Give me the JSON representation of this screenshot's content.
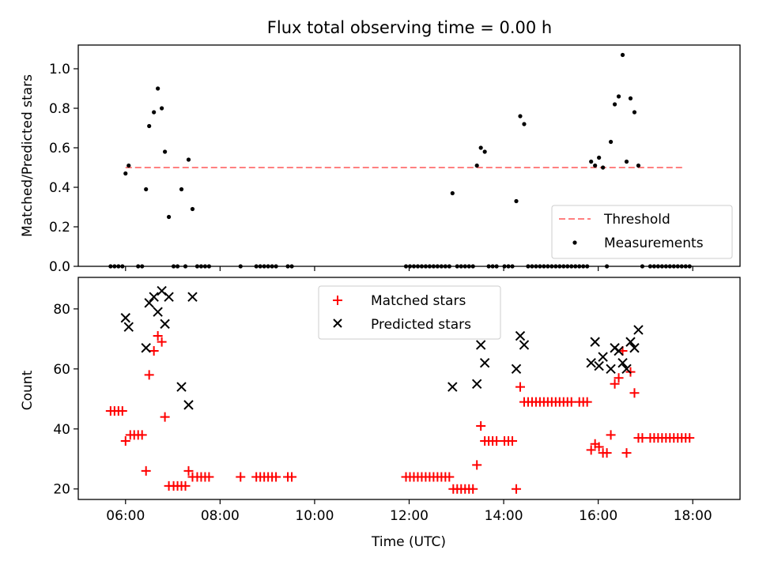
{
  "title": "Flux total observing time = 0.00 h",
  "chart_data": [
    {
      "type": "scatter",
      "ylabel": "Matched/Predicted stars",
      "xlim": [
        "05:00",
        "19:00"
      ],
      "ylim": [
        0,
        1.12
      ],
      "yticks": [
        "0.0",
        "0.2",
        "0.4",
        "0.6",
        "0.8",
        "1.0"
      ],
      "legend": {
        "placement": "lower-right",
        "entries": [
          "Threshold",
          "Measurements"
        ]
      },
      "threshold": {
        "name": "Threshold",
        "value": 0.5,
        "x_range": [
          "06:00",
          "17:50"
        ],
        "color": "#ff8080",
        "style": "dashed"
      },
      "series": [
        {
          "name": "Measurements",
          "color": "#000000",
          "marker": "dot",
          "points": [
            [
              "06:00",
              0.47
            ],
            [
              "06:04",
              0.51
            ],
            [
              "06:26",
              0.39
            ],
            [
              "06:30",
              0.71
            ],
            [
              "06:36",
              0.78
            ],
            [
              "06:41",
              0.9
            ],
            [
              "06:46",
              0.8
            ],
            [
              "06:50",
              0.58
            ],
            [
              "06:55",
              0.25
            ],
            [
              "07:11",
              0.39
            ],
            [
              "07:20",
              0.54
            ],
            [
              "07:25",
              0.29
            ],
            [
              "12:55",
              0.37
            ],
            [
              "13:26",
              0.51
            ],
            [
              "13:31",
              0.6
            ],
            [
              "13:36",
              0.58
            ],
            [
              "14:16",
              0.33
            ],
            [
              "14:21",
              0.76
            ],
            [
              "14:26",
              0.72
            ],
            [
              "15:51",
              0.53
            ],
            [
              "15:56",
              0.51
            ],
            [
              "16:01",
              0.55
            ],
            [
              "16:06",
              0.5
            ],
            [
              "16:16",
              0.63
            ],
            [
              "16:21",
              0.82
            ],
            [
              "16:26",
              0.86
            ],
            [
              "16:31",
              1.07
            ],
            [
              "16:36",
              0.53
            ],
            [
              "16:41",
              0.85
            ],
            [
              "16:46",
              0.78
            ],
            [
              "16:51",
              0.51
            ],
            [
              "05:41",
              0
            ],
            [
              "05:46",
              0
            ],
            [
              "05:51",
              0
            ],
            [
              "05:56",
              0
            ],
            [
              "06:16",
              0
            ],
            [
              "06:21",
              0
            ],
            [
              "07:01",
              0
            ],
            [
              "07:06",
              0
            ],
            [
              "07:16",
              0
            ],
            [
              "07:31",
              0
            ],
            [
              "07:36",
              0
            ],
            [
              "07:41",
              0
            ],
            [
              "07:46",
              0
            ],
            [
              "08:26",
              0
            ],
            [
              "08:46",
              0
            ],
            [
              "08:51",
              0
            ],
            [
              "08:56",
              0
            ],
            [
              "09:01",
              0
            ],
            [
              "09:06",
              0
            ],
            [
              "09:11",
              0
            ],
            [
              "09:26",
              0
            ],
            [
              "09:31",
              0
            ],
            [
              "11:56",
              0
            ],
            [
              "12:01",
              0
            ],
            [
              "12:06",
              0
            ],
            [
              "12:11",
              0
            ],
            [
              "12:16",
              0
            ],
            [
              "12:21",
              0
            ],
            [
              "12:26",
              0
            ],
            [
              "12:31",
              0
            ],
            [
              "12:36",
              0
            ],
            [
              "12:41",
              0
            ],
            [
              "12:46",
              0
            ],
            [
              "12:51",
              0
            ],
            [
              "13:01",
              0
            ],
            [
              "13:06",
              0
            ],
            [
              "13:11",
              0
            ],
            [
              "13:16",
              0
            ],
            [
              "13:21",
              0
            ],
            [
              "13:41",
              0
            ],
            [
              "13:46",
              0
            ],
            [
              "13:51",
              0
            ],
            [
              "14:01",
              0
            ],
            [
              "14:06",
              0
            ],
            [
              "14:11",
              0
            ],
            [
              "14:31",
              0
            ],
            [
              "14:36",
              0
            ],
            [
              "14:41",
              0
            ],
            [
              "14:46",
              0
            ],
            [
              "14:51",
              0
            ],
            [
              "14:56",
              0
            ],
            [
              "15:01",
              0
            ],
            [
              "15:06",
              0
            ],
            [
              "15:11",
              0
            ],
            [
              "15:16",
              0
            ],
            [
              "15:21",
              0
            ],
            [
              "15:26",
              0
            ],
            [
              "15:31",
              0
            ],
            [
              "15:36",
              0
            ],
            [
              "15:41",
              0
            ],
            [
              "15:46",
              0
            ],
            [
              "16:11",
              0
            ],
            [
              "16:56",
              0
            ],
            [
              "17:06",
              0
            ],
            [
              "17:11",
              0
            ],
            [
              "17:16",
              0
            ],
            [
              "17:21",
              0
            ],
            [
              "17:26",
              0
            ],
            [
              "17:31",
              0
            ],
            [
              "17:36",
              0
            ],
            [
              "17:41",
              0
            ],
            [
              "17:46",
              0
            ],
            [
              "17:51",
              0
            ],
            [
              "17:56",
              0
            ]
          ]
        }
      ]
    },
    {
      "type": "scatter",
      "xlabel": "Time (UTC)",
      "ylabel": "Count",
      "xlim": [
        "05:00",
        "19:00"
      ],
      "ylim": [
        16.5,
        90.5
      ],
      "xticks": [
        "06:00",
        "08:00",
        "10:00",
        "12:00",
        "14:00",
        "16:00",
        "18:00"
      ],
      "yticks": [
        "20",
        "40",
        "60",
        "80"
      ],
      "legend": {
        "placement": "upper-center",
        "entries": [
          "Matched stars",
          "Predicted stars"
        ]
      },
      "series": [
        {
          "name": "Matched stars",
          "color": "#ff0000",
          "marker": "plus",
          "points": [
            [
              "05:41",
              46
            ],
            [
              "05:46",
              46
            ],
            [
              "05:51",
              46
            ],
            [
              "05:56",
              46
            ],
            [
              "06:00",
              36
            ],
            [
              "06:06",
              38
            ],
            [
              "06:11",
              38
            ],
            [
              "06:16",
              38
            ],
            [
              "06:21",
              38
            ],
            [
              "06:26",
              26
            ],
            [
              "06:30",
              58
            ],
            [
              "06:36",
              66
            ],
            [
              "06:41",
              71
            ],
            [
              "06:46",
              69
            ],
            [
              "06:50",
              44
            ],
            [
              "06:55",
              21
            ],
            [
              "07:01",
              21
            ],
            [
              "07:06",
              21
            ],
            [
              "07:11",
              21
            ],
            [
              "07:16",
              21
            ],
            [
              "07:20",
              26
            ],
            [
              "07:25",
              24
            ],
            [
              "07:31",
              24
            ],
            [
              "07:36",
              24
            ],
            [
              "07:41",
              24
            ],
            [
              "07:46",
              24
            ],
            [
              "08:26",
              24
            ],
            [
              "08:46",
              24
            ],
            [
              "08:51",
              24
            ],
            [
              "08:56",
              24
            ],
            [
              "09:01",
              24
            ],
            [
              "09:06",
              24
            ],
            [
              "09:11",
              24
            ],
            [
              "09:26",
              24
            ],
            [
              "09:31",
              24
            ],
            [
              "11:56",
              24
            ],
            [
              "12:01",
              24
            ],
            [
              "12:06",
              24
            ],
            [
              "12:11",
              24
            ],
            [
              "12:16",
              24
            ],
            [
              "12:21",
              24
            ],
            [
              "12:26",
              24
            ],
            [
              "12:31",
              24
            ],
            [
              "12:36",
              24
            ],
            [
              "12:41",
              24
            ],
            [
              "12:46",
              24
            ],
            [
              "12:51",
              24
            ],
            [
              "12:56",
              20
            ],
            [
              "13:01",
              20
            ],
            [
              "13:06",
              20
            ],
            [
              "13:11",
              20
            ],
            [
              "13:16",
              20
            ],
            [
              "13:21",
              20
            ],
            [
              "13:26",
              28
            ],
            [
              "13:31",
              41
            ],
            [
              "13:36",
              36
            ],
            [
              "13:41",
              36
            ],
            [
              "13:46",
              36
            ],
            [
              "13:51",
              36
            ],
            [
              "14:01",
              36
            ],
            [
              "14:06",
              36
            ],
            [
              "14:11",
              36
            ],
            [
              "14:16",
              20
            ],
            [
              "14:21",
              54
            ],
            [
              "14:26",
              49
            ],
            [
              "14:31",
              49
            ],
            [
              "14:36",
              49
            ],
            [
              "14:41",
              49
            ],
            [
              "14:46",
              49
            ],
            [
              "14:51",
              49
            ],
            [
              "14:56",
              49
            ],
            [
              "15:01",
              49
            ],
            [
              "15:06",
              49
            ],
            [
              "15:11",
              49
            ],
            [
              "15:16",
              49
            ],
            [
              "15:21",
              49
            ],
            [
              "15:26",
              49
            ],
            [
              "15:36",
              49
            ],
            [
              "15:41",
              49
            ],
            [
              "15:46",
              49
            ],
            [
              "15:51",
              33
            ],
            [
              "15:56",
              35
            ],
            [
              "16:01",
              34
            ],
            [
              "16:06",
              32
            ],
            [
              "16:11",
              32
            ],
            [
              "16:16",
              38
            ],
            [
              "16:21",
              55
            ],
            [
              "16:26",
              57
            ],
            [
              "16:31",
              66
            ],
            [
              "16:36",
              32
            ],
            [
              "16:41",
              59
            ],
            [
              "16:46",
              52
            ],
            [
              "16:51",
              37
            ],
            [
              "16:56",
              37
            ],
            [
              "17:06",
              37
            ],
            [
              "17:11",
              37
            ],
            [
              "17:16",
              37
            ],
            [
              "17:21",
              37
            ],
            [
              "17:26",
              37
            ],
            [
              "17:31",
              37
            ],
            [
              "17:36",
              37
            ],
            [
              "17:41",
              37
            ],
            [
              "17:46",
              37
            ],
            [
              "17:51",
              37
            ],
            [
              "17:56",
              37
            ]
          ]
        },
        {
          "name": "Predicted stars",
          "color": "#000000",
          "marker": "x",
          "points": [
            [
              "06:00",
              77
            ],
            [
              "06:04",
              74
            ],
            [
              "06:26",
              67
            ],
            [
              "06:30",
              82
            ],
            [
              "06:36",
              84
            ],
            [
              "06:41",
              79
            ],
            [
              "06:46",
              86
            ],
            [
              "06:50",
              75
            ],
            [
              "06:55",
              84
            ],
            [
              "07:11",
              54
            ],
            [
              "07:20",
              48
            ],
            [
              "07:25",
              84
            ],
            [
              "12:55",
              54
            ],
            [
              "13:26",
              55
            ],
            [
              "13:31",
              68
            ],
            [
              "13:36",
              62
            ],
            [
              "14:16",
              60
            ],
            [
              "14:21",
              71
            ],
            [
              "14:26",
              68
            ],
            [
              "15:51",
              62
            ],
            [
              "15:56",
              69
            ],
            [
              "16:01",
              61
            ],
            [
              "16:06",
              64
            ],
            [
              "16:16",
              60
            ],
            [
              "16:21",
              67
            ],
            [
              "16:26",
              66
            ],
            [
              "16:31",
              62
            ],
            [
              "16:36",
              60
            ],
            [
              "16:41",
              69
            ],
            [
              "16:46",
              67
            ],
            [
              "16:51",
              73
            ]
          ]
        }
      ]
    }
  ]
}
